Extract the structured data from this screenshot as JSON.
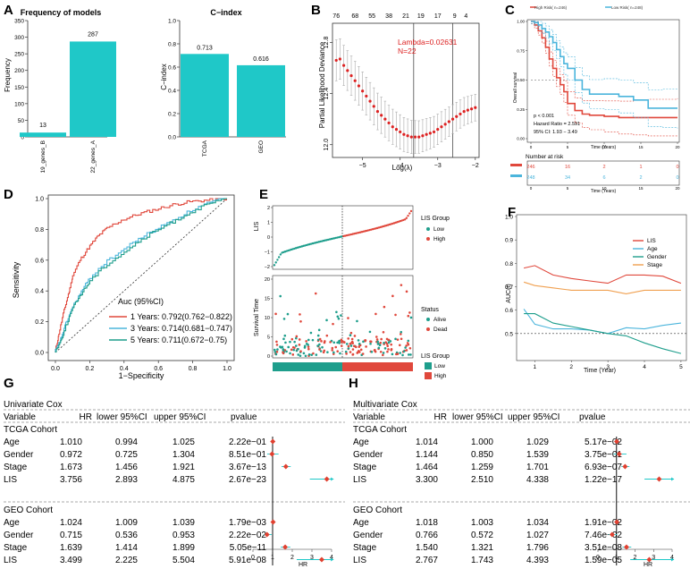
{
  "panels": {
    "A": {
      "label": "A",
      "freq": {
        "title": "Frequency of models",
        "ylabel": "Frequency",
        "yticks": [
          0,
          50,
          100,
          150,
          200,
          250,
          300,
          350
        ],
        "categories": [
          "19_genes_B",
          "22_genes_A"
        ],
        "values": [
          13,
          287
        ],
        "labels": [
          "13",
          "287"
        ]
      },
      "cindex": {
        "title": "C−index",
        "ylabel": "C−index",
        "yticks": [
          "0.0",
          "0.2",
          "0.4",
          "0.6",
          "0.8",
          "1.0"
        ],
        "categories": [
          "TCGA",
          "GEO"
        ],
        "values": [
          0.713,
          0.616
        ],
        "labels": [
          "0.713",
          "0.616"
        ]
      }
    },
    "B": {
      "label": "B",
      "ylabel": "Partial Likelihood Deviance",
      "xlabel": "Log(λ)",
      "top_ticks": [
        "76",
        "68",
        "55",
        "38",
        "21",
        "19",
        "17",
        "9",
        "4"
      ],
      "yticks": [
        "12.0",
        "12.4",
        "12.8"
      ],
      "xticks": [
        "−5",
        "−4",
        "−3",
        "−2"
      ],
      "annot1": "Lambda=0.02631",
      "annot2": "N=22"
    },
    "C": {
      "label": "C",
      "legend": [
        "High Risk( n=246)",
        "Low Risk( n=248)"
      ],
      "ylabel": "Overall survival",
      "xlabel": "Time (Years)",
      "yticks": [
        "0.00",
        "0.25",
        "0.50",
        "0.75",
        "1.00"
      ],
      "xticks": [
        "0",
        "5",
        "10",
        "15",
        "20"
      ],
      "stat1": "p < 0.001",
      "stat2": "Hazard Ratio = 2.591",
      "stat3": "95% CI: 1.93 − 3.49",
      "risk_title": "Number at risk",
      "risk_high": [
        "246",
        "16",
        "2",
        "1",
        "0"
      ],
      "risk_low": [
        "248",
        "34",
        "6",
        "2",
        "0"
      ]
    },
    "D": {
      "label": "D",
      "ylabel": "Sensitivity",
      "xlabel": "1−Specificity",
      "ticks": [
        "0.0",
        "0.2",
        "0.4",
        "0.6",
        "0.8",
        "1.0"
      ],
      "legend_title": "Auc (95%CI)",
      "legend": [
        "1 Years: 0.792(0.762−0.822)",
        "3 Years: 0.714(0.681−0.747)",
        "5 Years: 0.711(0.672−0.75)"
      ]
    },
    "E": {
      "label": "E",
      "ylabel_top": "LIS",
      "yticks_top": [
        "−2",
        "−1",
        "0",
        "1",
        "2"
      ],
      "legend_top_title": "LIS Group",
      "legend_top": [
        "Low",
        "High"
      ],
      "ylabel_mid": "Survival Time",
      "yticks_mid": [
        "0",
        "5",
        "10",
        "15",
        "20"
      ],
      "legend_mid_title": "Status",
      "legend_mid": [
        "Alive",
        "Dead"
      ],
      "legend_bot_title": "LIS Group",
      "legend_bot": [
        "Low",
        "High"
      ]
    },
    "F": {
      "label": "F",
      "ylabel": "AUC(t)",
      "xlabel": "Time (Year)",
      "yticks": [
        "0.5",
        "0.6",
        "0.7",
        "0.8",
        "0.9",
        "1.0"
      ],
      "xticks": [
        "1",
        "2",
        "3",
        "4",
        "5"
      ],
      "legend": [
        "LIS",
        "Age",
        "Gender",
        "Stage"
      ]
    },
    "G": {
      "label": "G",
      "title": "Univariate Cox",
      "headers": [
        "Variable",
        "HR",
        "lower 95%CI",
        "upper 95%CI",
        "pvalue"
      ],
      "groups": [
        "TCGA Cohort",
        "GEO Cohort"
      ],
      "rows": [
        [
          "Age",
          "1.010",
          "0.994",
          "1.025",
          "2.22e−01"
        ],
        [
          "Gender",
          "0.972",
          "0.725",
          "1.304",
          "8.51e−01"
        ],
        [
          "Stage",
          "1.673",
          "1.456",
          "1.921",
          "3.67e−13"
        ],
        [
          "LIS",
          "3.756",
          "2.893",
          "4.875",
          "2.67e−23"
        ],
        [
          "Age",
          "1.024",
          "1.009",
          "1.039",
          "1.79e−03"
        ],
        [
          "Gender",
          "0.715",
          "0.536",
          "0.953",
          "2.22e−02"
        ],
        [
          "Stage",
          "1.639",
          "1.414",
          "1.899",
          "5.05e−11"
        ],
        [
          "LIS",
          "3.499",
          "2.225",
          "5.504",
          "5.91e−08"
        ]
      ],
      "axis_ticks": [
        "0",
        "1",
        "2",
        "3",
        "4"
      ],
      "axis_label": "HR"
    },
    "H": {
      "label": "H",
      "title": "Multivariate Cox",
      "headers": [
        "Variable",
        "HR",
        "lower 95%CI",
        "upper 95%CI",
        "pvalue"
      ],
      "groups": [
        "TCGA Cohort",
        "GEO Cohort"
      ],
      "rows": [
        [
          "Age",
          "1.014",
          "1.000",
          "1.029",
          "5.17e−02"
        ],
        [
          "Gender",
          "1.144",
          "0.850",
          "1.539",
          "3.75e−01"
        ],
        [
          "Stage",
          "1.464",
          "1.259",
          "1.701",
          "6.93e−07"
        ],
        [
          "LIS",
          "3.300",
          "2.510",
          "4.338",
          "1.22e−17"
        ],
        [
          "Age",
          "1.018",
          "1.003",
          "1.034",
          "1.91e−02"
        ],
        [
          "Gender",
          "0.766",
          "0.572",
          "1.027",
          "7.46e−02"
        ],
        [
          "Stage",
          "1.540",
          "1.321",
          "1.796",
          "3.51e−08"
        ],
        [
          "LIS",
          "2.767",
          "1.743",
          "4.393",
          "1.59e−05"
        ]
      ],
      "axis_ticks": [
        "0",
        "1",
        "2",
        "3",
        "4"
      ],
      "axis_label": "HR"
    }
  },
  "colors": {
    "teal": "#1fc8c8",
    "red": "#e0483c",
    "blue": "#4bb5dc",
    "greenTeal": "#1e9e8c",
    "orange": "#f0a050",
    "lasso": "#dd2222",
    "forest": "#e04030"
  },
  "chart_data": [
    {
      "type": "bar",
      "title": "Frequency of models",
      "categories": [
        "19_genes_B",
        "22_genes_A"
      ],
      "values": [
        13,
        287
      ],
      "ylim": [
        0,
        350
      ],
      "ylabel": "Frequency"
    },
    {
      "type": "bar",
      "title": "C−index",
      "categories": [
        "TCGA",
        "GEO"
      ],
      "values": [
        0.713,
        0.616
      ],
      "ylim": [
        0,
        1
      ],
      "ylabel": "C−index"
    },
    {
      "type": "scatter",
      "title": "LASSO cross-validation",
      "xlabel": "Log(λ)",
      "ylabel": "Partial Likelihood Deviance",
      "x": [
        -5.7,
        -5.6,
        -5.5,
        -5.4,
        -5.3,
        -5.2,
        -5.1,
        -5.0,
        -4.9,
        -4.8,
        -4.7,
        -4.6,
        -4.5,
        -4.4,
        -4.3,
        -4.2,
        -4.1,
        -4.0,
        -3.9,
        -3.8,
        -3.7,
        -3.6,
        -3.5,
        -3.4,
        -3.3,
        -3.2,
        -3.1,
        -3.0,
        -2.9,
        -2.8,
        -2.7,
        -2.6,
        -2.5,
        -2.4,
        -2.3,
        -2.2,
        -2.1,
        -2.0
      ],
      "y": [
        12.66,
        12.67,
        12.62,
        12.58,
        12.54,
        12.5,
        12.46,
        12.42,
        12.38,
        12.34,
        12.3,
        12.26,
        12.23,
        12.2,
        12.17,
        12.14,
        12.12,
        12.1,
        12.08,
        12.07,
        12.06,
        12.06,
        12.06,
        12.07,
        12.08,
        12.09,
        12.1,
        12.12,
        12.14,
        12.16,
        12.18,
        12.2,
        12.22,
        12.24,
        12.26,
        12.27,
        12.28,
        12.29
      ],
      "vlines": [
        -3.64,
        -2.6
      ],
      "xlim": [
        -5.8,
        -1.9
      ],
      "ylim": [
        11.9,
        12.95
      ]
    },
    {
      "type": "line",
      "title": "Kaplan−Meier",
      "xlabel": "Time (Years)",
      "ylabel": "Overall survival",
      "xlim": [
        0,
        20
      ],
      "ylim": [
        0,
        1
      ],
      "series": [
        {
          "name": "High Risk",
          "x": [
            0,
            0.5,
            1,
            1.5,
            2,
            2.5,
            3,
            3.5,
            4,
            4.5,
            5,
            6,
            7,
            8,
            10,
            12,
            14,
            16,
            20
          ],
          "y": [
            1,
            0.97,
            0.92,
            0.86,
            0.78,
            0.68,
            0.6,
            0.52,
            0.46,
            0.4,
            0.3,
            0.24,
            0.21,
            0.2,
            0.19,
            0.18,
            0.18,
            0.18,
            0.18
          ]
        },
        {
          "name": "Low Risk",
          "x": [
            0,
            0.5,
            1,
            1.5,
            2,
            2.5,
            3,
            3.5,
            4,
            4.5,
            5,
            6,
            7,
            8,
            10,
            12,
            14,
            16,
            18,
            20
          ],
          "y": [
            1,
            0.99,
            0.97,
            0.94,
            0.91,
            0.87,
            0.82,
            0.76,
            0.7,
            0.64,
            0.6,
            0.5,
            0.42,
            0.38,
            0.38,
            0.36,
            0.33,
            0.26,
            0.26,
            0.26
          ]
        }
      ]
    },
    {
      "type": "line",
      "title": "ROC",
      "xlabel": "1−Specificity",
      "ylabel": "Sensitivity",
      "xlim": [
        0,
        1
      ],
      "ylim": [
        0,
        1
      ],
      "series": [
        {
          "name": "1 Years",
          "x": [
            0,
            0.02,
            0.05,
            0.08,
            0.1,
            0.15,
            0.2,
            0.25,
            0.3,
            0.4,
            0.5,
            0.6,
            0.7,
            0.8,
            0.9,
            1
          ],
          "y": [
            0,
            0.1,
            0.25,
            0.38,
            0.48,
            0.6,
            0.68,
            0.75,
            0.8,
            0.86,
            0.9,
            0.93,
            0.96,
            0.98,
            0.99,
            1
          ]
        },
        {
          "name": "3 Years",
          "x": [
            0,
            0.03,
            0.06,
            0.1,
            0.15,
            0.2,
            0.3,
            0.4,
            0.5,
            0.6,
            0.7,
            0.8,
            0.9,
            1
          ],
          "y": [
            0,
            0.07,
            0.17,
            0.28,
            0.38,
            0.47,
            0.58,
            0.66,
            0.74,
            0.8,
            0.86,
            0.92,
            0.97,
            1
          ]
        },
        {
          "name": "5 Years",
          "x": [
            0,
            0.03,
            0.06,
            0.1,
            0.15,
            0.2,
            0.3,
            0.4,
            0.5,
            0.6,
            0.7,
            0.8,
            0.9,
            1
          ],
          "y": [
            0,
            0.06,
            0.15,
            0.27,
            0.37,
            0.45,
            0.56,
            0.64,
            0.72,
            0.79,
            0.85,
            0.91,
            0.96,
            1
          ]
        }
      ]
    },
    {
      "type": "line",
      "title": "Time-dependent AUC",
      "xlabel": "Time (Year)",
      "ylabel": "AUC(t)",
      "xlim": [
        0.6,
        5.1
      ],
      "ylim": [
        0.4,
        1.0
      ],
      "x": [
        0.7,
        1.0,
        1.5,
        2.0,
        2.5,
        3.0,
        3.5,
        4.0,
        4.5,
        5.0
      ],
      "series": [
        {
          "name": "LIS",
          "values": [
            0.78,
            0.79,
            0.75,
            0.735,
            0.725,
            0.715,
            0.75,
            0.75,
            0.745,
            0.715
          ]
        },
        {
          "name": "Age",
          "values": [
            0.605,
            0.54,
            0.52,
            0.52,
            0.515,
            0.5,
            0.525,
            0.52,
            0.535,
            0.545
          ]
        },
        {
          "name": "Gender",
          "values": [
            0.585,
            0.585,
            0.545,
            0.53,
            0.515,
            0.5,
            0.49,
            0.46,
            0.435,
            0.415
          ]
        },
        {
          "name": "Stage",
          "values": [
            0.72,
            0.705,
            0.695,
            0.685,
            0.685,
            0.685,
            0.67,
            0.685,
            0.685,
            0.685
          ]
        }
      ]
    },
    {
      "type": "scatter",
      "title": "Univariate Cox forest",
      "xlabel": "HR",
      "xlim": [
        0,
        4
      ],
      "x": [
        1.01,
        0.972,
        1.673,
        3.756,
        1.024,
        0.715,
        1.639,
        3.499
      ],
      "lower": [
        0.994,
        0.725,
        1.456,
        2.893,
        1.009,
        0.536,
        1.414,
        2.225
      ],
      "upper": [
        1.025,
        1.304,
        1.921,
        4.875,
        1.039,
        0.953,
        1.899,
        5.504
      ]
    },
    {
      "type": "scatter",
      "title": "Multivariate Cox forest",
      "xlabel": "HR",
      "xlim": [
        0,
        4
      ],
      "x": [
        1.014,
        1.144,
        1.464,
        3.3,
        1.018,
        0.766,
        1.54,
        2.767
      ],
      "lower": [
        1.0,
        0.85,
        1.259,
        2.51,
        1.003,
        0.572,
        1.321,
        1.743
      ],
      "upper": [
        1.029,
        1.539,
        1.701,
        4.338,
        1.034,
        1.027,
        1.796,
        4.393
      ]
    }
  ]
}
